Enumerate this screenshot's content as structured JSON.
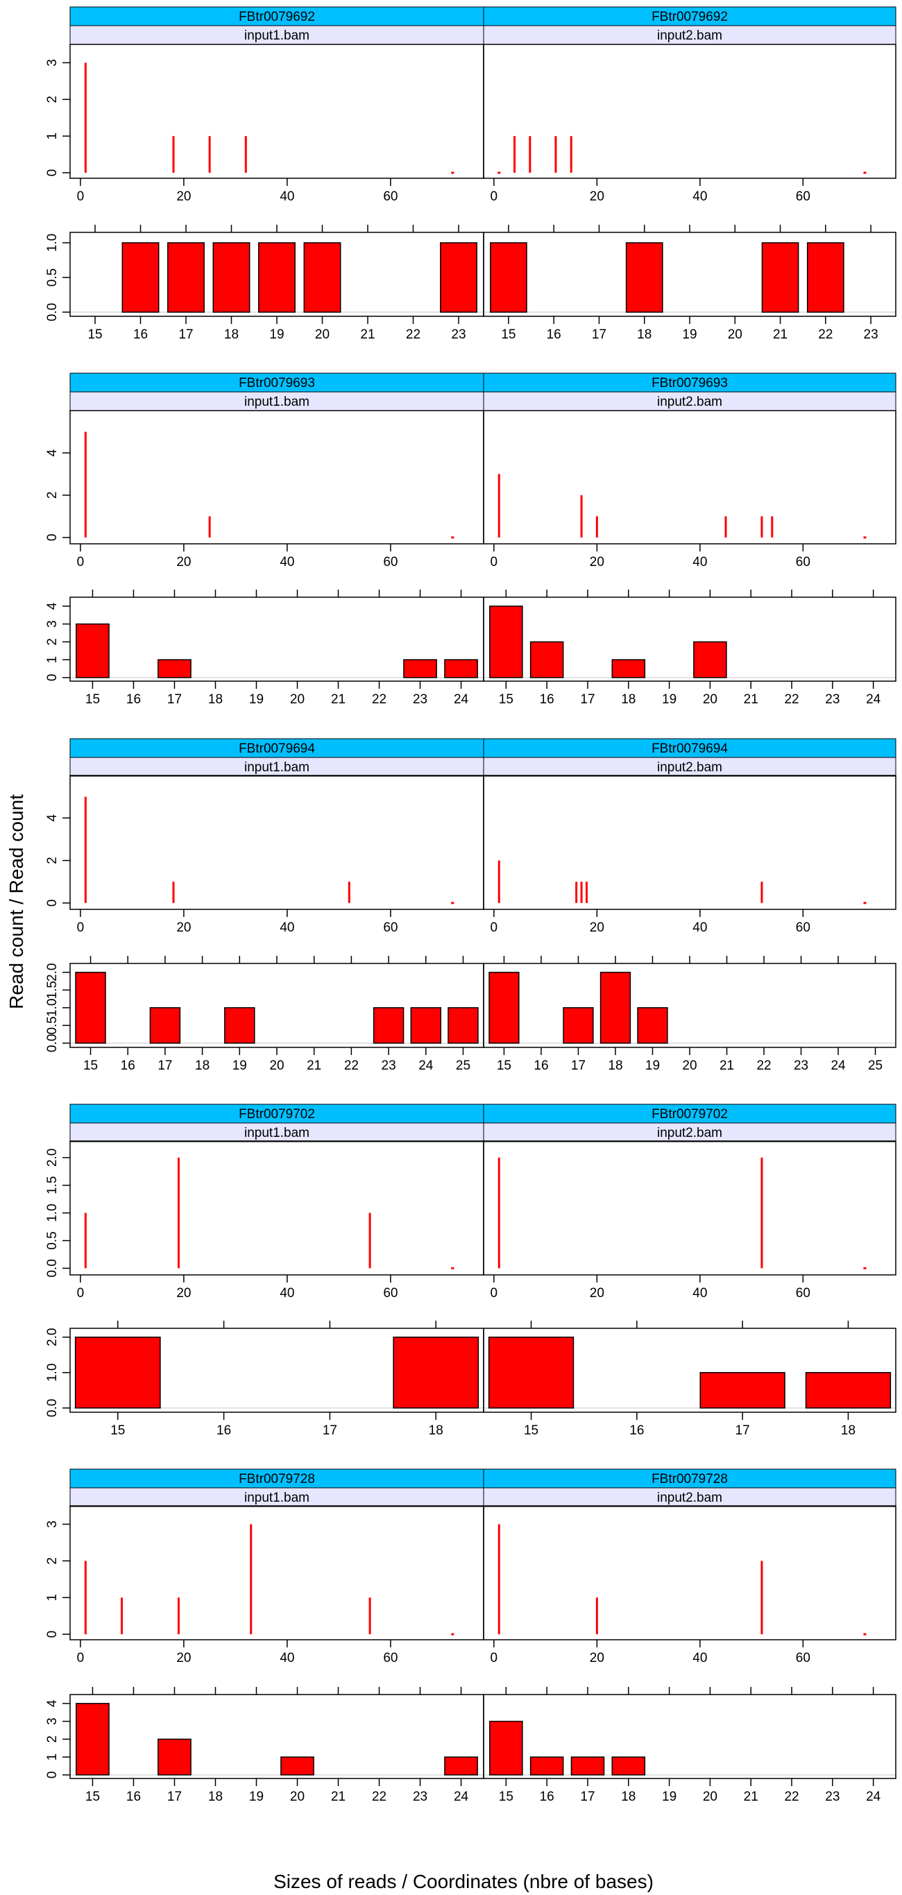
{
  "figure": {
    "ylabel": "Read count / Read count",
    "xlabel": "Sizes of reads / Coordinates (nbre of bases)"
  },
  "colors": {
    "strip_top": "#00BFFF",
    "strip_sub": "#E6E6FF",
    "bar_fill": "#FF0000",
    "bar_border": "#000000",
    "baseline": "#D9D9D9"
  },
  "chart_data": [
    {
      "type": "bar",
      "kind": "coverage",
      "panels": [
        {
          "transcript": "FBtr0079692",
          "file": "input1.bam",
          "x": [
            1,
            18,
            25,
            32,
            72
          ],
          "values": [
            3,
            1,
            1,
            1,
            0
          ]
        },
        {
          "transcript": "FBtr0079692",
          "file": "input2.bam",
          "x": [
            1,
            4,
            7,
            12,
            15,
            72
          ],
          "values": [
            0,
            1,
            1,
            1,
            1,
            0
          ]
        }
      ],
      "xlim": [
        -2,
        78
      ],
      "xticks": [
        0,
        20,
        40,
        60
      ],
      "ylim": [
        -0.15,
        3.5
      ],
      "yticks": [
        0,
        1,
        2,
        3
      ],
      "ytick_labels": [
        "0",
        "1",
        "2",
        "3"
      ]
    },
    {
      "type": "bar",
      "kind": "sizes",
      "panels": [
        {
          "categories": [
            16,
            17,
            18,
            19,
            20,
            23
          ],
          "values": [
            1,
            1,
            1,
            1,
            1,
            1
          ]
        },
        {
          "categories": [
            15,
            18,
            21,
            22
          ],
          "values": [
            1,
            1,
            1,
            1
          ]
        }
      ],
      "xlim": [
        14.45,
        23.55
      ],
      "xticks": [
        15,
        16,
        17,
        18,
        19,
        20,
        21,
        22,
        23
      ],
      "ylim": [
        -0.06,
        1.15
      ],
      "yticks": [
        0,
        0.5,
        1
      ],
      "ytick_labels": [
        "0.0",
        "0.5",
        "1.0"
      ]
    },
    {
      "type": "bar",
      "kind": "coverage",
      "panels": [
        {
          "transcript": "FBtr0079693",
          "file": "input1.bam",
          "x": [
            1,
            25,
            72
          ],
          "values": [
            5,
            1,
            0
          ]
        },
        {
          "transcript": "FBtr0079693",
          "file": "input2.bam",
          "x": [
            1,
            17,
            20,
            45,
            52,
            54,
            72
          ],
          "values": [
            3,
            2,
            1,
            1,
            1,
            1,
            0
          ]
        }
      ],
      "xlim": [
        -2,
        78
      ],
      "xticks": [
        0,
        20,
        40,
        60
      ],
      "ylim": [
        -0.3,
        6
      ],
      "yticks": [
        0,
        2,
        4
      ],
      "ytick_labels": [
        "0",
        "2",
        "4"
      ]
    },
    {
      "type": "bar",
      "kind": "sizes",
      "panels": [
        {
          "categories": [
            15,
            17,
            23,
            24
          ],
          "values": [
            3,
            1,
            1,
            1
          ]
        },
        {
          "categories": [
            15,
            16,
            18,
            20
          ],
          "values": [
            4,
            2,
            1,
            2
          ]
        }
      ],
      "xlim": [
        14.45,
        24.55
      ],
      "xticks": [
        15,
        16,
        17,
        18,
        19,
        20,
        21,
        22,
        23,
        24
      ],
      "ylim": [
        -0.2,
        4.5
      ],
      "yticks": [
        0,
        1,
        2,
        3,
        4
      ],
      "ytick_labels": [
        "0",
        "1",
        "2",
        "3",
        "4"
      ]
    },
    {
      "type": "bar",
      "kind": "coverage",
      "panels": [
        {
          "transcript": "FBtr0079694",
          "file": "input1.bam",
          "x": [
            1,
            18,
            52,
            72
          ],
          "values": [
            5,
            1,
            1,
            0
          ]
        },
        {
          "transcript": "FBtr0079694",
          "file": "input2.bam",
          "x": [
            1,
            16,
            17,
            18,
            52,
            72
          ],
          "values": [
            2,
            1,
            1,
            1,
            1,
            0
          ]
        }
      ],
      "xlim": [
        -2,
        78
      ],
      "xticks": [
        0,
        20,
        40,
        60
      ],
      "ylim": [
        -0.3,
        6
      ],
      "yticks": [
        0,
        2,
        4
      ],
      "ytick_labels": [
        "0",
        "2",
        "4"
      ]
    },
    {
      "type": "bar",
      "kind": "sizes",
      "panels": [
        {
          "categories": [
            15,
            17,
            19,
            23,
            24,
            25
          ],
          "values": [
            2,
            1,
            1,
            1,
            1,
            1
          ]
        },
        {
          "categories": [
            15,
            17,
            18,
            19
          ],
          "values": [
            2,
            1,
            2,
            1
          ]
        }
      ],
      "xlim": [
        14.45,
        25.55
      ],
      "xticks": [
        15,
        16,
        17,
        18,
        19,
        20,
        21,
        22,
        23,
        24,
        25
      ],
      "ylim": [
        -0.12,
        2.25
      ],
      "yticks": [
        0,
        0.5,
        1,
        1.5,
        2
      ],
      "ytick_labels": [
        "0.0",
        "0.5",
        "1.0",
        "1.5",
        "2.0"
      ]
    },
    {
      "type": "bar",
      "kind": "coverage",
      "panels": [
        {
          "transcript": "FBtr0079702",
          "file": "input1.bam",
          "x": [
            1,
            19,
            56,
            72
          ],
          "values": [
            1,
            2,
            1,
            0
          ]
        },
        {
          "transcript": "FBtr0079702",
          "file": "input2.bam",
          "x": [
            1,
            52,
            72
          ],
          "values": [
            2,
            2,
            0
          ]
        }
      ],
      "xlim": [
        -2,
        78
      ],
      "xticks": [
        0,
        20,
        40,
        60
      ],
      "ylim": [
        -0.12,
        2.3
      ],
      "yticks": [
        0,
        0.5,
        1,
        1.5,
        2
      ],
      "ytick_labels": [
        "0.0",
        "0.5",
        "1.0",
        "1.5",
        "2.0"
      ]
    },
    {
      "type": "bar",
      "kind": "sizes",
      "panels": [
        {
          "categories": [
            15,
            18
          ],
          "values": [
            2,
            2
          ]
        },
        {
          "categories": [
            15,
            17,
            18
          ],
          "values": [
            2,
            1,
            1
          ]
        }
      ],
      "xlim": [
        14.55,
        18.45
      ],
      "xticks": [
        15,
        16,
        17,
        18
      ],
      "ylim": [
        -0.12,
        2.25
      ],
      "yticks": [
        0,
        1,
        2
      ],
      "ytick_labels": [
        "0.0",
        "1.0",
        "2.0"
      ]
    },
    {
      "type": "bar",
      "kind": "coverage",
      "panels": [
        {
          "transcript": "FBtr0079728",
          "file": "input1.bam",
          "x": [
            1,
            8,
            19,
            33,
            56,
            72
          ],
          "values": [
            2,
            1,
            1,
            3,
            1,
            0
          ]
        },
        {
          "transcript": "FBtr0079728",
          "file": "input2.bam",
          "x": [
            1,
            20,
            52,
            72
          ],
          "values": [
            3,
            1,
            2,
            0
          ]
        }
      ],
      "xlim": [
        -2,
        78
      ],
      "xticks": [
        0,
        20,
        40,
        60
      ],
      "ylim": [
        -0.15,
        3.5
      ],
      "yticks": [
        0,
        1,
        2,
        3
      ],
      "ytick_labels": [
        "0",
        "1",
        "2",
        "3"
      ]
    },
    {
      "type": "bar",
      "kind": "sizes",
      "panels": [
        {
          "categories": [
            15,
            17,
            20,
            24
          ],
          "values": [
            4,
            2,
            1,
            1
          ]
        },
        {
          "categories": [
            15,
            16,
            17,
            18
          ],
          "values": [
            3,
            1,
            1,
            1
          ]
        }
      ],
      "xlim": [
        14.45,
        24.55
      ],
      "xticks": [
        15,
        16,
        17,
        18,
        19,
        20,
        21,
        22,
        23,
        24
      ],
      "ylim": [
        -0.2,
        4.5
      ],
      "yticks": [
        0,
        1,
        2,
        3,
        4
      ],
      "ytick_labels": [
        "0",
        "1",
        "2",
        "3",
        "4"
      ]
    }
  ]
}
